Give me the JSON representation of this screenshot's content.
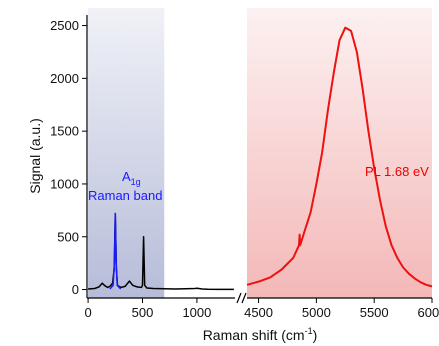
{
  "chart_data": {
    "type": "line",
    "ylabel": "Signal (a.u.)",
    "xlabel": "Raman shift (cm⁻¹)",
    "xlabel_main": "Raman shift (cm",
    "xlabel_sup": "-1",
    "xlabel_close": ")",
    "ylim": [
      -80,
      2600
    ],
    "y_ticks": [
      0,
      500,
      1000,
      1500,
      2000,
      2500
    ],
    "x_ticks_left": [
      0,
      500,
      1000
    ],
    "x_ticks_right": [
      4500,
      5000,
      5500,
      6000
    ],
    "axis_break_between": [
      1350,
      4400
    ],
    "shaded_regions": [
      {
        "name": "Raman region",
        "x_range": [
          0,
          700
        ],
        "color": "#9ea6cc"
      },
      {
        "name": "PL region",
        "x_range": [
          4400,
          6000
        ],
        "color": "#f0a0a0"
      }
    ],
    "annotations": {
      "a1g_main": "A",
      "a1g_sub": "1g",
      "raman_band": "Raman band",
      "pl": "PL 1.68 eV"
    },
    "series": [
      {
        "color": "#000000",
        "points": [
          [
            0,
            5
          ],
          [
            60,
            10
          ],
          [
            100,
            25
          ],
          [
            130,
            60
          ],
          [
            150,
            40
          ],
          [
            180,
            20
          ],
          [
            200,
            30
          ],
          [
            225,
            60
          ],
          [
            240,
            200
          ],
          [
            250,
            720
          ],
          [
            260,
            200
          ],
          [
            270,
            40
          ],
          [
            300,
            20
          ],
          [
            340,
            30
          ],
          [
            380,
            80
          ],
          [
            410,
            40
          ],
          [
            450,
            25
          ],
          [
            490,
            20
          ],
          [
            500,
            40
          ],
          [
            510,
            500
          ],
          [
            520,
            40
          ],
          [
            540,
            15
          ],
          [
            600,
            10
          ],
          [
            700,
            8
          ],
          [
            800,
            5
          ],
          [
            900,
            8
          ],
          [
            980,
            10
          ],
          [
            1000,
            12
          ],
          [
            1050,
            5
          ],
          [
            1100,
            3
          ],
          [
            1200,
            2
          ],
          [
            1300,
            2
          ],
          [
            1340,
            2
          ]
        ]
      },
      {
        "color": "#1a1aff",
        "points": [
          [
            200,
            5
          ],
          [
            230,
            40
          ],
          [
            242,
            250
          ],
          [
            250,
            720
          ],
          [
            258,
            250
          ],
          [
            268,
            40
          ],
          [
            300,
            5
          ]
        ]
      },
      {
        "color": "#ee1111",
        "points": [
          [
            4400,
            45
          ],
          [
            4500,
            75
          ],
          [
            4600,
            115
          ],
          [
            4700,
            190
          ],
          [
            4800,
            300
          ],
          [
            4850,
            420
          ],
          [
            4855,
            520
          ],
          [
            4860,
            420
          ],
          [
            4900,
            560
          ],
          [
            4950,
            730
          ],
          [
            5000,
            1000
          ],
          [
            5050,
            1300
          ],
          [
            5100,
            1700
          ],
          [
            5150,
            2050
          ],
          [
            5200,
            2360
          ],
          [
            5250,
            2480
          ],
          [
            5300,
            2450
          ],
          [
            5350,
            2250
          ],
          [
            5400,
            1900
          ],
          [
            5450,
            1500
          ],
          [
            5500,
            1150
          ],
          [
            5550,
            850
          ],
          [
            5600,
            600
          ],
          [
            5650,
            420
          ],
          [
            5700,
            300
          ],
          [
            5750,
            210
          ],
          [
            5800,
            150
          ],
          [
            5850,
            105
          ],
          [
            5900,
            70
          ],
          [
            5950,
            45
          ],
          [
            6000,
            30
          ]
        ]
      }
    ]
  }
}
